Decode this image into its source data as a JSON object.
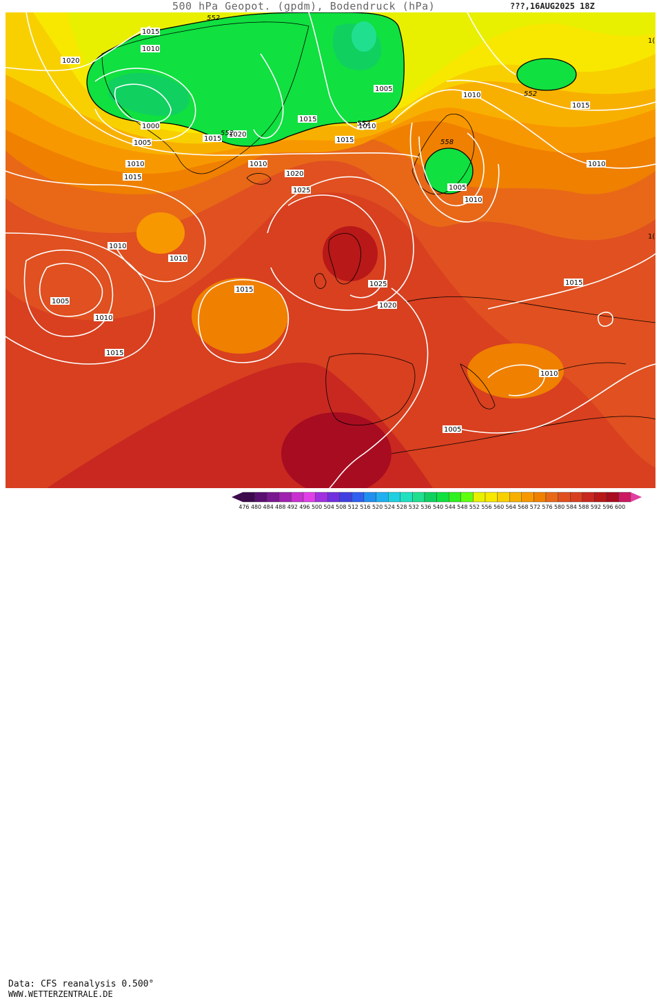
{
  "header": {
    "title": "500 hPa Geopot. (gpdm), Bodendruck (hPa)",
    "date": "???,16AUG2025 18Z"
  },
  "footer": {
    "data_source": "Data: CFS reanalysis 0.500°",
    "website": "WWW.WETTERZENTRALE.DE"
  },
  "legend": {
    "values": [
      "476",
      "480",
      "484",
      "488",
      "492",
      "496",
      "500",
      "504",
      "508",
      "512",
      "516",
      "520",
      "524",
      "528",
      "532",
      "536",
      "540",
      "544",
      "548",
      "552",
      "556",
      "560",
      "564",
      "568",
      "572",
      "576",
      "580",
      "584",
      "588",
      "592",
      "596",
      "600"
    ],
    "colors": [
      "#3d0a4d",
      "#5a1070",
      "#7a1890",
      "#a020b0",
      "#c830d0",
      "#e040e8",
      "#a030e0",
      "#7030e0",
      "#4040e0",
      "#3060f0",
      "#2090f0",
      "#20b0f0",
      "#20d0e0",
      "#20e0c0",
      "#20e090",
      "#10d060",
      "#10e040",
      "#30f020",
      "#60ff10",
      "#e8f000",
      "#f8e800",
      "#f8d000",
      "#f8b000",
      "#f89800",
      "#f08000",
      "#e86818",
      "#e05020",
      "#d84020",
      "#c82820",
      "#b81818",
      "#a80c20",
      "#cc1860"
    ],
    "arrow_left_color": "#3d0a4d",
    "arrow_right_color": "#e040a0"
  },
  "map": {
    "isobar_labels": [
      "1015",
      "1010",
      "1020",
      "1000",
      "1005",
      "1010",
      "1015",
      "1015",
      "1020",
      "1010",
      "1015",
      "1015",
      "1010",
      "1005",
      "1010",
      "1015",
      "1010",
      "1005",
      "1005",
      "1010",
      "1020",
      "1025",
      "1015",
      "1015",
      "1025",
      "1020",
      "1010",
      "1010",
      "1010",
      "1015",
      "1005",
      "1010"
    ],
    "height_labels": [
      "552",
      "552",
      "552",
      "552",
      "558"
    ],
    "edge_labels": [
      "1(",
      "1("
    ]
  }
}
